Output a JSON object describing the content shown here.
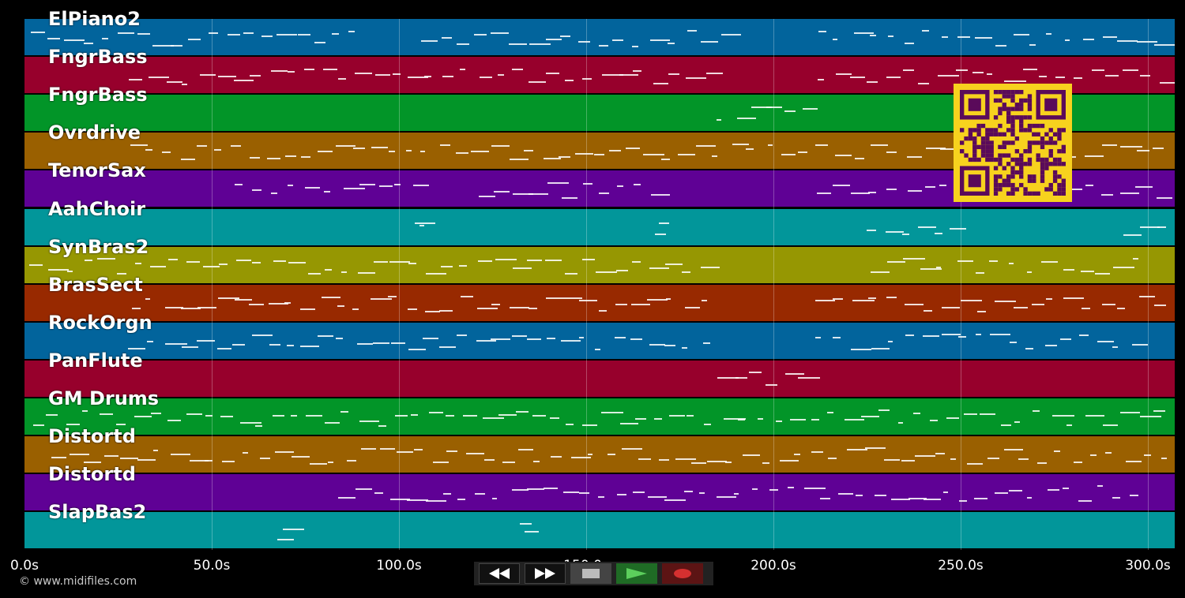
{
  "tracks": [
    {
      "label": "ElPiano2",
      "color": "#02649c"
    },
    {
      "label": "FngrBass",
      "color": "#97002c"
    },
    {
      "label": "FngrBass",
      "color": "#029528"
    },
    {
      "label": "Ovrdrive",
      "color": "#9a6000"
    },
    {
      "label": "TenorSax",
      "color": "#5f0195"
    },
    {
      "label": "AahChoir",
      "color": "#02969a"
    },
    {
      "label": "SynBras2",
      "color": "#969702"
    },
    {
      "label": "BrasSect",
      "color": "#982900"
    },
    {
      "label": "RockOrgn",
      "color": "#02649c"
    },
    {
      "label": "PanFlute",
      "color": "#97002c"
    },
    {
      "label": "GM Drums",
      "color": "#029528"
    },
    {
      "label": "Distortd",
      "color": "#9a6000"
    },
    {
      "label": "Distortd",
      "color": "#5f0195"
    },
    {
      "label": "SlapBas2",
      "color": "#02969a"
    }
  ],
  "timeline": {
    "ticks": [
      "0.0s",
      "50.0s",
      "100.0s",
      "150.0s",
      "200.0s",
      "250.0s",
      "300.0s"
    ]
  },
  "copyright": "© www.midifiles.com",
  "transport": {
    "rewind": "rewind-icon",
    "fast_forward": "fast-forward-icon",
    "stop": "stop-icon",
    "play": "play-icon",
    "record": "record-icon",
    "play_color": "#3cb043",
    "record_color": "#c62828"
  },
  "qr": {
    "color": "#f7d21e",
    "ink": "#5a0a5a"
  }
}
